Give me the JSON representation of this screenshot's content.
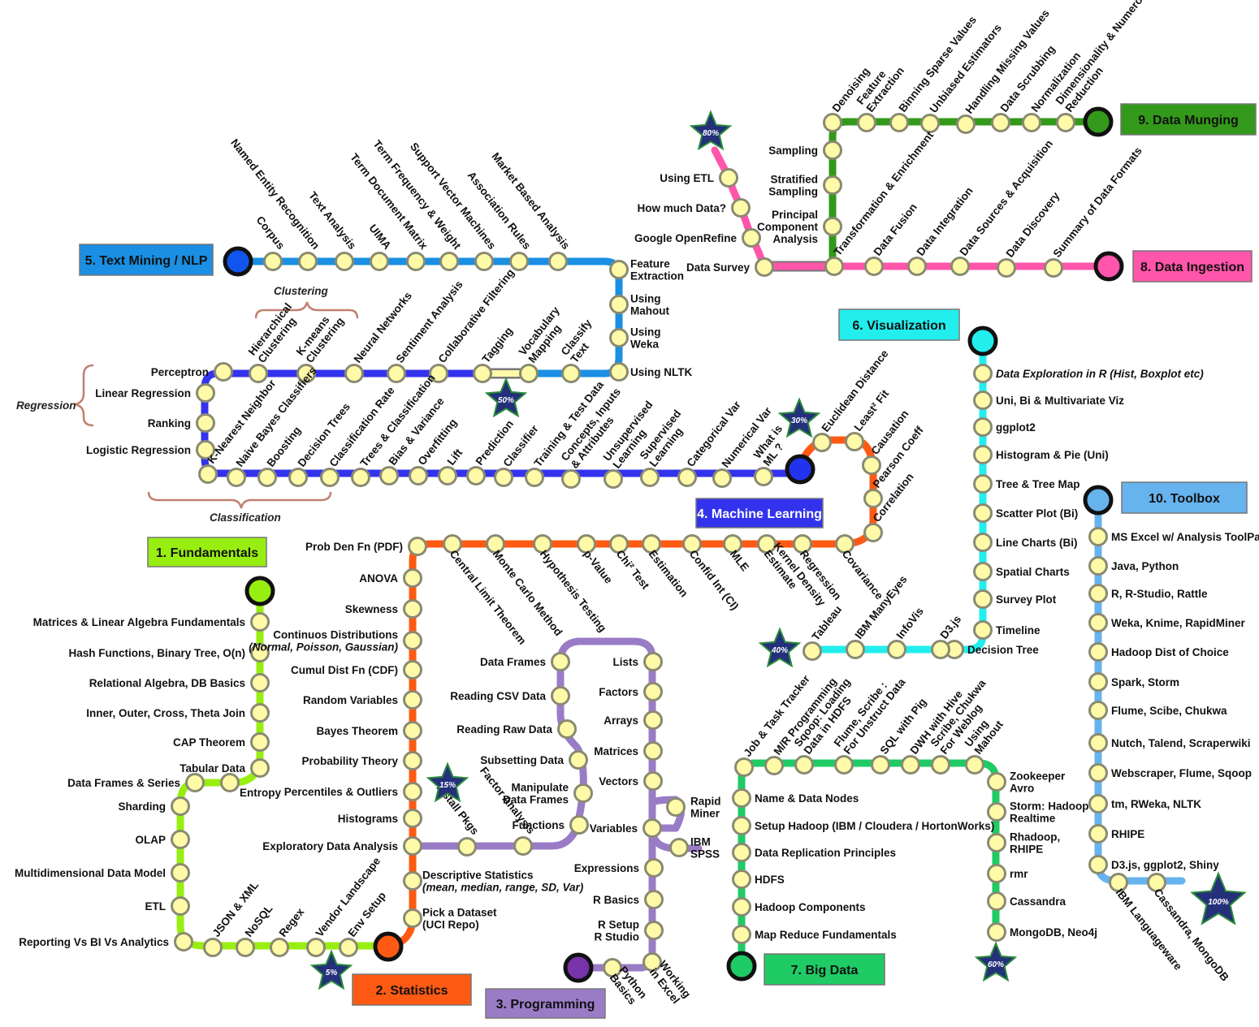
{
  "lines": [
    {
      "id": "fundamentals",
      "title": "1. Fundamentals",
      "color": "#99ee11",
      "stations": [
        "Matrices & Linear Algebra Fundamentals",
        "Hash Functions, Binary Tree, O(n)",
        "Relational Algebra, DB Basics",
        "Inner, Outer, Cross, Theta Join",
        "CAP Theorem",
        "Tabular Data",
        "Entropy",
        "Data Frames & Series",
        "Sharding",
        "OLAP",
        "Multidimensional Data Model",
        "ETL",
        "Reporting Vs BI Vs Analytics",
        "JSON & XML",
        "NoSQL",
        "Regex",
        "Vendor Landscape",
        "Env Setup"
      ]
    },
    {
      "id": "statistics",
      "title": "2. Statistics",
      "color": "#ff5a14",
      "stations": [
        "Pick a Dataset (UCI Repo)",
        "Descriptive Statistics (mean, median, range, SD, Var)",
        "Exploratory Data Analysis",
        "Histograms",
        "Percentiles & Outliers",
        "Probability Theory",
        "Bayes Theorem",
        "Random Variables",
        "Cumul Dist Fn (CDF)",
        "Continuos Distributions (Normal, Poisson, Gaussian)",
        "Skewness",
        "ANOVA",
        "Prob Den Fn (PDF)",
        "Central Limit Theorem",
        "Monte Carlo Method",
        "Hypothesis Testing",
        "p-Value",
        "Chi² Test",
        "Estimation",
        "Confid Int (CI)",
        "MLE",
        "Kernel Density Estimate",
        "Regression",
        "Covariance",
        "Correlation",
        "Pearson Coeff",
        "Causation",
        "Least² Fit",
        "Euclidean Distance"
      ]
    },
    {
      "id": "programming",
      "title": "3. Programming",
      "color": "#9a7cc6",
      "stations": [
        "Python Basics",
        "Working in Excel",
        "R Setup R Studio",
        "R Basics",
        "Expressions",
        "Variables",
        "IBM SPSS",
        "Rapid Miner",
        "Vectors",
        "Matrices",
        "Arrays",
        "Factors",
        "Lists",
        "Data Frames",
        "Reading CSV Data",
        "Reading Raw Data",
        "Subsetting Data",
        "Manipulate Data Frames",
        "Functions",
        "Factor Analysis",
        "Install Pkgs"
      ]
    },
    {
      "id": "ml",
      "title": "4. Machine Learning",
      "color": "#3333ee",
      "stations": [
        "What is ML ?",
        "Numerical Var",
        "Categorical Var",
        "Supervised Learning",
        "Unsupervised Learning",
        "Concepts, Inputs & Attributes",
        "Training & Test Data",
        "Classifier",
        "Prediction",
        "Lift",
        "Overfitting",
        "Bias & Variance",
        "Trees & Classification",
        "Classification Rate",
        "Decision Trees",
        "Boosting",
        "Naive Bayes Classifiers",
        "K-Nearest Neighbor",
        "Logistic Regression",
        "Ranking",
        "Linear Regression",
        "Perceptron",
        "Hierarchical Clustering",
        "K-means Clustering",
        "Neural Networks",
        "Sentiment Analysis",
        "Collaborative Filtering",
        "Tagging"
      ]
    },
    {
      "id": "nlp",
      "title": "5. Text Mining / NLP",
      "color": "#1a8fe3",
      "stations": [
        "Corpus",
        "Named Entity Recognition",
        "Text Analysis",
        "UIMA",
        "Term Document Matrix",
        "Term Frequency & Weight",
        "Support Vector Machines",
        "Association Rules",
        "Market Based Analysis",
        "Feature Extraction",
        "Using Mahout",
        "Using Weka",
        "Using NLTK",
        "Classify Text",
        "Vocabulary Mapping"
      ]
    },
    {
      "id": "viz",
      "title": "6. Visualization",
      "color": "#22eeee",
      "stations": [
        "Data Exploration in R (Hist, Boxplot etc)",
        "Uni, Bi & Multivariate Viz",
        "ggplot2",
        "Histogram & Pie (Uni)",
        "Tree & Tree Map",
        "Scatter Plot (Bi)",
        "Line Charts (Bi)",
        "Spatial Charts",
        "Survey Plot",
        "Timeline",
        "Decision Tree",
        "D3.js",
        "InfoVis",
        "IBM ManyEyes",
        "Tableau"
      ]
    },
    {
      "id": "bigdata",
      "title": "7. Big Data",
      "color": "#1ecb64",
      "stations": [
        "Map Reduce Fundamentals",
        "Hadoop Components",
        "HDFS",
        "Data Replication Principles",
        "Setup Hadoop (IBM / Cloudera / HortonWorks)",
        "Name & Data Nodes",
        "Job & Task Tracker",
        "M/R Programming",
        "Sqoop: Loading Data in HDFS",
        "Flume, Scribe: For Unstruct Data",
        "SQL with Pig",
        "DWH with Hive",
        "Scribe, Chukwa For Weblog",
        "Using Mahout",
        "Zookeeper Avro",
        "Storm: Hadoop Realtime",
        "Rhadoop, RHIPE",
        "rmr",
        "Cassandra",
        "MongoDB, Neo4j"
      ]
    },
    {
      "id": "ingestion",
      "title": "8. Data Ingestion",
      "color": "#ff55aa",
      "stations": [
        "Summary of Data Formats",
        "Data Discovery",
        "Data Sources & Acquisition",
        "Data Integration",
        "Data Fusion",
        "Transformation & Enrichment",
        "Data Survey",
        "Google OpenRefine",
        "How much Data?",
        "Using ETL"
      ]
    },
    {
      "id": "munging",
      "title": "9. Data Munging",
      "color": "#33991a",
      "stations": [
        "Dimensionality & Numerosity Reduction",
        "Normalization",
        "Data Scrubbing",
        "Handling Missing Values",
        "Unbiased Estimators",
        "Binning Sparse Values",
        "Feature Extraction",
        "Denoising",
        "Sampling",
        "Stratified Sampling",
        "Principal Component Analysis"
      ]
    },
    {
      "id": "toolbox",
      "title": "10. Toolbox",
      "color": "#66b3ee",
      "stations": [
        "MS Excel w/ Analysis ToolPak",
        "Java, Python",
        "R, R-Studio, Rattle",
        "Weka, Knime, RapidMiner",
        "Hadoop Dist of Choice",
        "Spark, Storm",
        "Flume, Scibe, Chukwa",
        "Nutch, Talend, Scraperwiki",
        "Webscraper, Flume, Sqoop",
        "tm, RWeka, NLTK",
        "RHIPE",
        "D3.js, ggplot2,  Shiny",
        "IBM Languageware",
        "Cassandra, MongoDB"
      ]
    }
  ],
  "progress": [
    {
      "label": "5%",
      "value": 5
    },
    {
      "label": "15%",
      "value": 15
    },
    {
      "label": "30%",
      "value": 30
    },
    {
      "label": "40%",
      "value": 40
    },
    {
      "label": "50%",
      "value": 50
    },
    {
      "label": "60%",
      "value": 60
    },
    {
      "label": "80%",
      "value": 80
    },
    {
      "label": "100%",
      "value": 100
    }
  ],
  "groups": {
    "clustering": "Clustering",
    "regression": "Regression",
    "classification": "Classification"
  }
}
